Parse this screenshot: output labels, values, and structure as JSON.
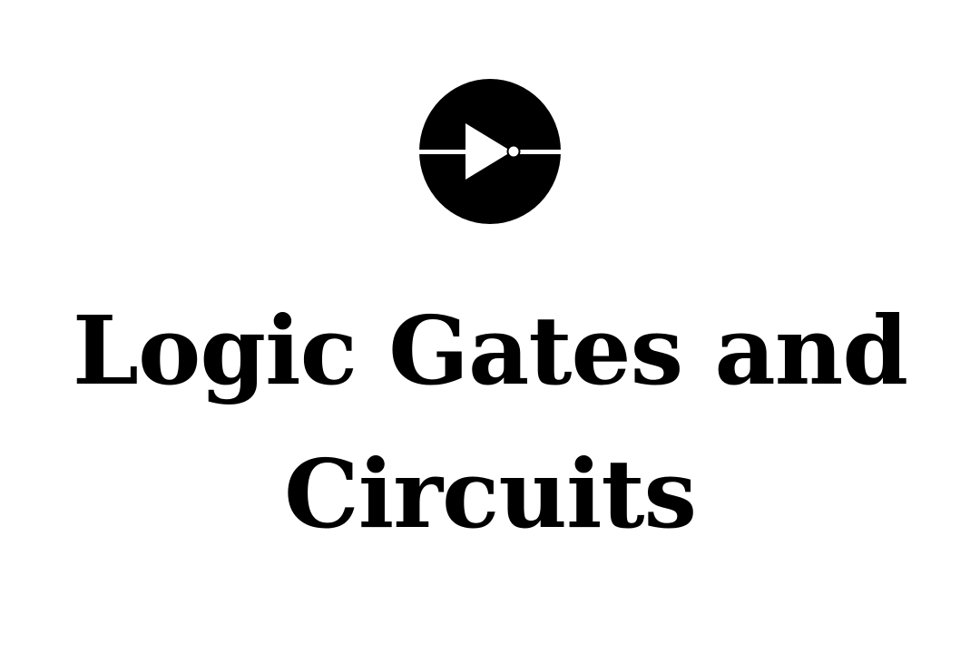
{
  "logo": {
    "icon": "not-gate-icon",
    "color": "#000000",
    "background": "#ffffff"
  },
  "title": {
    "line1": "Logic Gates and",
    "line2": "Circuits"
  }
}
